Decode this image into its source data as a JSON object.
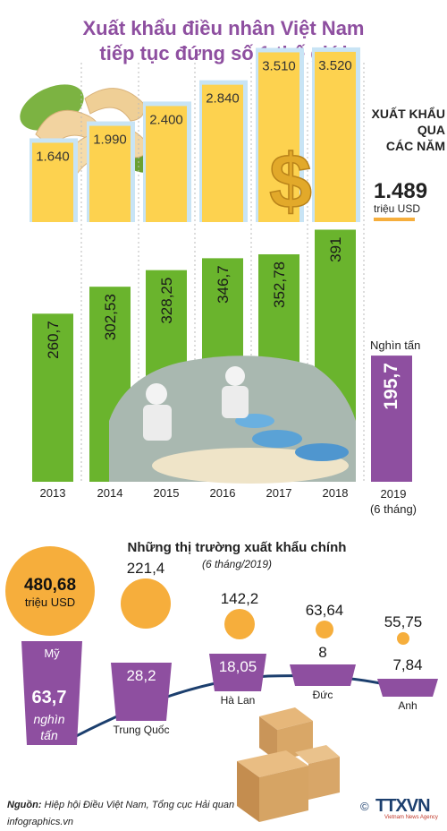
{
  "header": {
    "title_line1": "Xuất khẩu điều nhân Việt Nam",
    "title_line2": "tiếp tục đứng số 1 thế giới"
  },
  "export_value": {
    "label_line1": "XUẤT KHẨU",
    "label_line2": "QUA",
    "label_line3": "CÁC NĂM",
    "value_2019": "1.489",
    "unit": "triệu USD"
  },
  "volume": {
    "unit": "Nghìn tấn"
  },
  "colors": {
    "title": "#8e4fa0",
    "gold_bar": "#fdd24f",
    "green_bar": "#6ab42d",
    "purple": "#8e4fa0",
    "orange_bubble": "#f6ae3c",
    "light_blue": "#c8e4f5"
  },
  "chart_data": [
    {
      "type": "bar",
      "title": "XUẤT KHẨU QUA CÁC NĂM",
      "unit": "triệu USD",
      "categories": [
        "2013",
        "2014",
        "2015",
        "2016",
        "2017",
        "2018",
        "2019 (6 tháng)"
      ],
      "values": [
        1640,
        1990,
        2400,
        2840,
        3510,
        3520,
        1489
      ],
      "labels": [
        "1.640",
        "1.990",
        "2.400",
        "2.840",
        "3.510",
        "3.520",
        "1.489"
      ]
    },
    {
      "type": "bar",
      "unit": "Nghìn tấn",
      "categories": [
        "2013",
        "2014",
        "2015",
        "2016",
        "2017",
        "2018",
        "2019 (6 tháng)"
      ],
      "values": [
        260.7,
        302.53,
        328.25,
        346.7,
        352.78,
        391,
        195.7
      ],
      "labels": [
        "260,7",
        "302,53",
        "328,25",
        "346,7",
        "352,78",
        "391",
        "195,7"
      ]
    },
    {
      "type": "bar",
      "title": "Những thị trường xuất khẩu chính",
      "subtitle": "(6 tháng/2019)",
      "units": [
        "triệu USD",
        "nghìn tấn"
      ],
      "markets": [
        {
          "name": "Mỹ",
          "value_usd": 480.68,
          "value_label": "480,68",
          "volume_t": 63.7,
          "volume_label": "63,7"
        },
        {
          "name": "Trung Quốc",
          "value_usd": 221.4,
          "value_label": "221,4",
          "volume_t": 28.2,
          "volume_label": "28,2"
        },
        {
          "name": "Hà Lan",
          "value_usd": 142.2,
          "value_label": "142,2",
          "volume_t": 18.05,
          "volume_label": "18,05"
        },
        {
          "name": "Đức",
          "value_usd": 63.64,
          "value_label": "63,64",
          "volume_t": 8,
          "volume_label": "8"
        },
        {
          "name": "Anh",
          "value_usd": 55.75,
          "value_label": "55,75",
          "volume_t": 7.84,
          "volume_label": "7,84"
        }
      ]
    }
  ],
  "years": {
    "y2019_line1": "2019",
    "y2019_line2": "(6 tháng)"
  },
  "markets_section": {
    "title": "Những thị trường xuất khẩu chính",
    "subtitle": "(6 tháng/2019)",
    "usa_value_unit": "triệu USD",
    "usa_volume_unit_line1": "nghìn",
    "usa_volume_unit_line2": "tấn"
  },
  "footer": {
    "source_label": "Nguồn:",
    "source_text": "Hiệp hội Điều Việt Nam, Tổng cục Hải quan",
    "website": "infographics.vn",
    "agency": "TTXVN",
    "agency_sub": "Vietnam News Agency"
  }
}
